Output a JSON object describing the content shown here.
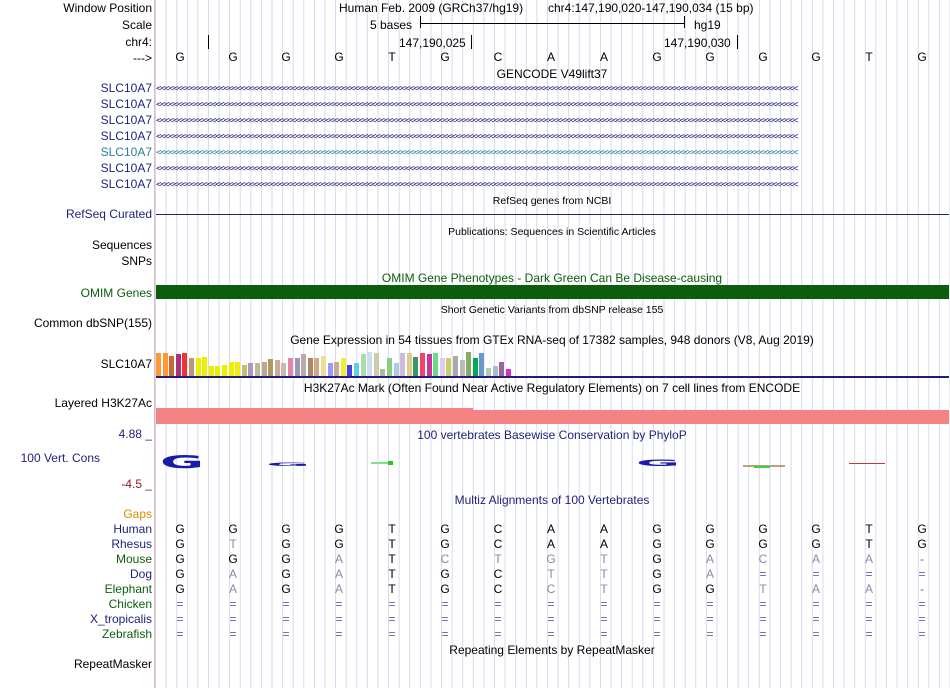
{
  "header": {
    "window_position_label": "Window Position",
    "scale_label": "Scale",
    "chrom_label": "chr4:",
    "strand_label": "--->",
    "assembly_text": "Human Feb. 2009 (GRCh37/hg19)",
    "position_text": "chr4:147,190,020-147,190,034 (15 bp)",
    "scale_text": "5 bases",
    "scale_db": "hg19",
    "coord1": "147,190,025",
    "coord2": "147,190,030",
    "bases": [
      "G",
      "G",
      "G",
      "G",
      "T",
      "G",
      "C",
      "A",
      "A",
      "G",
      "G",
      "G",
      "G",
      "T",
      "G"
    ]
  },
  "tracks": {
    "gencode": {
      "title": "GENCODE V49lift37",
      "labels": [
        "SLC10A7",
        "SLC10A7",
        "SLC10A7",
        "SLC10A7",
        "SLC10A7",
        "SLC10A7",
        "SLC10A7"
      ],
      "arrows": "<<<<<<<<<<<<<<<<<<<<<<<<<<<<<<<<<<<<<<<<<<<<<<<<<<<<<<<<<<<<<<<<<<<<<<<<<<<<<<<<<<<<<<<<<<<<<<<<<<<<<<<<<<<<<<<<<<<<<<<<<<<<<<<<<<<<<<<<<<<<<<<<<<<<<<<<",
      "colors": [
        "#1f1f7a",
        "#1f1f7a",
        "#1f1f7a",
        "#1f1f7a",
        "#2a7f9a",
        "#1f1f7a",
        "#1f1f7a"
      ]
    },
    "refseq": {
      "title": "RefSeq genes from NCBI",
      "label": "RefSeq Curated"
    },
    "publications": {
      "title": "Publications: Sequences in Scientific Articles",
      "label1": "Sequences",
      "label2": "SNPs"
    },
    "omim": {
      "title": "OMIM Gene Phenotypes - Dark Green Can Be Disease-causing",
      "label": "OMIM Genes",
      "color": "#0b5e0b"
    },
    "dbsnp": {
      "title": "Short Genetic Variants from dbSNP release 155",
      "label": "Common dbSNP(155)"
    },
    "gtex": {
      "title": "Gene Expression in 54 tissues from GTEx RNA-seq of 17382 samples, 948 donors (V8, Aug 2019)",
      "label": "SLC10A7",
      "levels": [
        0.95,
        0.95,
        0.85,
        0.9,
        0.95,
        0.75,
        0.75,
        0.8,
        0.4,
        0.4,
        0.45,
        0.6,
        0.6,
        0.45,
        0.55,
        0.55,
        0.6,
        0.7,
        0.65,
        0.55,
        0.75,
        0.75,
        0.9,
        0.75,
        0.75,
        0.85,
        0.55,
        0.6,
        0.75,
        0.45,
        0.55,
        0.9,
        1.0,
        0.95,
        0.3,
        0.75,
        0.55,
        0.95,
        0.95,
        0.8,
        0.95,
        0.9,
        0.95,
        0.75,
        0.75,
        0.85,
        0.65,
        1.0,
        0.75,
        0.95,
        0.35,
        0.4,
        0.6,
        0.3
      ],
      "colors": [
        "#ff9933",
        "#ff9933",
        "#cc6633",
        "#aa3377",
        "#ee3333",
        "#bb9977",
        "#eeee00",
        "#eeee00",
        "#eeee00",
        "#eeee00",
        "#eeee00",
        "#eeee00",
        "#eeee00",
        "#ccbb77",
        "#aa99bb",
        "#bbbb99",
        "#bbaa88",
        "#aa9966",
        "#ccaa99",
        "#ccbbaa",
        "#dd88aa",
        "#9999bb",
        "#bbaaaa",
        "#aa8866",
        "#ccaa88",
        "#eedd99",
        "#9999ff",
        "#ccaa99",
        "#eeee33",
        "#4444dd",
        "#66ccee",
        "#aaddaa",
        "#ccddee",
        "#ccccaa",
        "#aabb99",
        "#88cc88",
        "#aaccdd",
        "#ccbbdd",
        "#ddcc88",
        "#339966",
        "#ee4466",
        "#cc3399",
        "#66dd88",
        "#ddccee",
        "#cccc66",
        "#aaaaaa",
        "#bbbbbb",
        "#88aa66",
        "#00aa55",
        "#6699cc",
        "#aaccbb",
        "#aabbcc",
        "#996699",
        "#cc33cc"
      ]
    },
    "h3k27ac": {
      "title": "H3K27Ac Mark (Often Found Near Active Regulatory Elements) on 7 cell lines from ENCODE",
      "label": "Layered H3K27Ac",
      "color": "#f58383"
    },
    "phylop": {
      "title": "100 vertebrates Basewise Conservation by PhyloP",
      "label": "100 Vert. Cons",
      "max": "4.88 _",
      "min": "-4.5 _"
    },
    "multiz": {
      "title": "Multiz Alignments of 100 Vertebrates",
      "gaps_label": "Gaps",
      "species": [
        {
          "name": "Human",
          "bases": [
            "G",
            "G",
            "G",
            "G",
            "T",
            "G",
            "C",
            "A",
            "A",
            "G",
            "G",
            "G",
            "G",
            "T",
            "G"
          ]
        },
        {
          "name": "Rhesus",
          "bases": [
            "G",
            "T",
            "G",
            "G",
            "T",
            "G",
            "C",
            "A",
            "A",
            "G",
            "G",
            "G",
            "G",
            "T",
            "G"
          ]
        },
        {
          "name": "Mouse",
          "bases": [
            "G",
            "G",
            "G",
            "A",
            "T",
            "C",
            "T",
            "G",
            "T",
            "G",
            "A",
            "C",
            "A",
            "A",
            "-"
          ]
        },
        {
          "name": "Dog",
          "bases": [
            "G",
            "A",
            "G",
            "A",
            "T",
            "G",
            "C",
            "T",
            "T",
            "G",
            "A",
            "=",
            "=",
            "=",
            "="
          ]
        },
        {
          "name": "Elephant",
          "bases": [
            "G",
            "A",
            "G",
            "A",
            "T",
            "G",
            "C",
            "C",
            "T",
            "G",
            "G",
            "T",
            "A",
            "A",
            "-"
          ]
        },
        {
          "name": "Chicken",
          "bases": [
            "=",
            "=",
            "=",
            "=",
            "=",
            "=",
            "=",
            "=",
            "=",
            "=",
            "=",
            "=",
            "=",
            "=",
            "="
          ]
        },
        {
          "name": "X_tropicalis",
          "bases": [
            "=",
            "=",
            "=",
            "=",
            "=",
            "=",
            "=",
            "=",
            "=",
            "=",
            "=",
            "=",
            "=",
            "=",
            "="
          ]
        },
        {
          "name": "Zebrafish",
          "bases": [
            "=",
            "=",
            "=",
            "=",
            "=",
            "=",
            "=",
            "=",
            "=",
            "=",
            "=",
            "=",
            "=",
            "=",
            "="
          ]
        }
      ]
    },
    "repeatmasker": {
      "title": "Repeating Elements by RepeatMasker",
      "label": "RepeatMasker"
    }
  }
}
